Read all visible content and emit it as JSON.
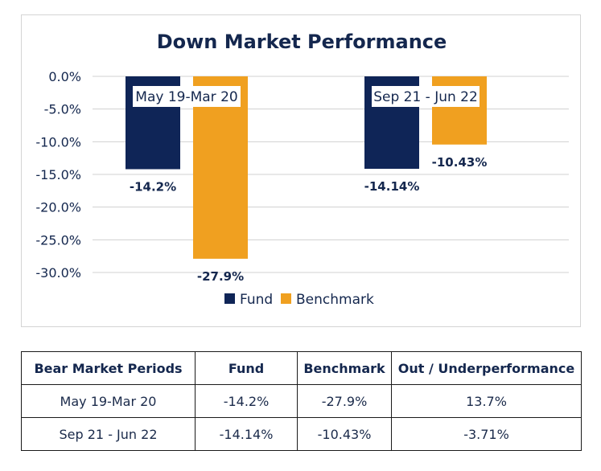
{
  "chart_data": {
    "type": "bar",
    "title": "Down Market Performance",
    "categories": [
      "May 19-Mar 20",
      "Sep 21 - Jun 22"
    ],
    "series": [
      {
        "name": "Fund",
        "values": [
          -14.2,
          -14.14
        ],
        "labels": [
          "-14.2%",
          "-14.14%"
        ]
      },
      {
        "name": "Benchmark",
        "values": [
          -27.9,
          -10.43
        ],
        "labels": [
          "-27.9%",
          "-10.43%"
        ]
      }
    ],
    "ylim": [
      -30,
      0
    ],
    "yticks": [
      0,
      -5,
      -10,
      -15,
      -20,
      -25,
      -30
    ],
    "ytick_labels": [
      "0.0%",
      "-5.0%",
      "-10.0%",
      "-15.0%",
      "-20.0%",
      "-25.0%",
      "-30.0%"
    ],
    "grid": true,
    "legend_position": "bottom",
    "category_label_position": "top"
  },
  "colors": {
    "fund": "#0f2557",
    "benchmark": "#f0a020",
    "grid": "#d0d0d0",
    "text": "#14274e"
  },
  "table": {
    "headers": [
      "Bear Market Periods",
      "Fund",
      "Benchmark",
      "Out / Underperformance"
    ],
    "rows": [
      [
        "May 19-Mar 20",
        "-14.2%",
        "-27.9%",
        "13.7%"
      ],
      [
        "Sep 21 - Jun 22",
        "-14.14%",
        "-10.43%",
        "-3.71%"
      ]
    ]
  }
}
